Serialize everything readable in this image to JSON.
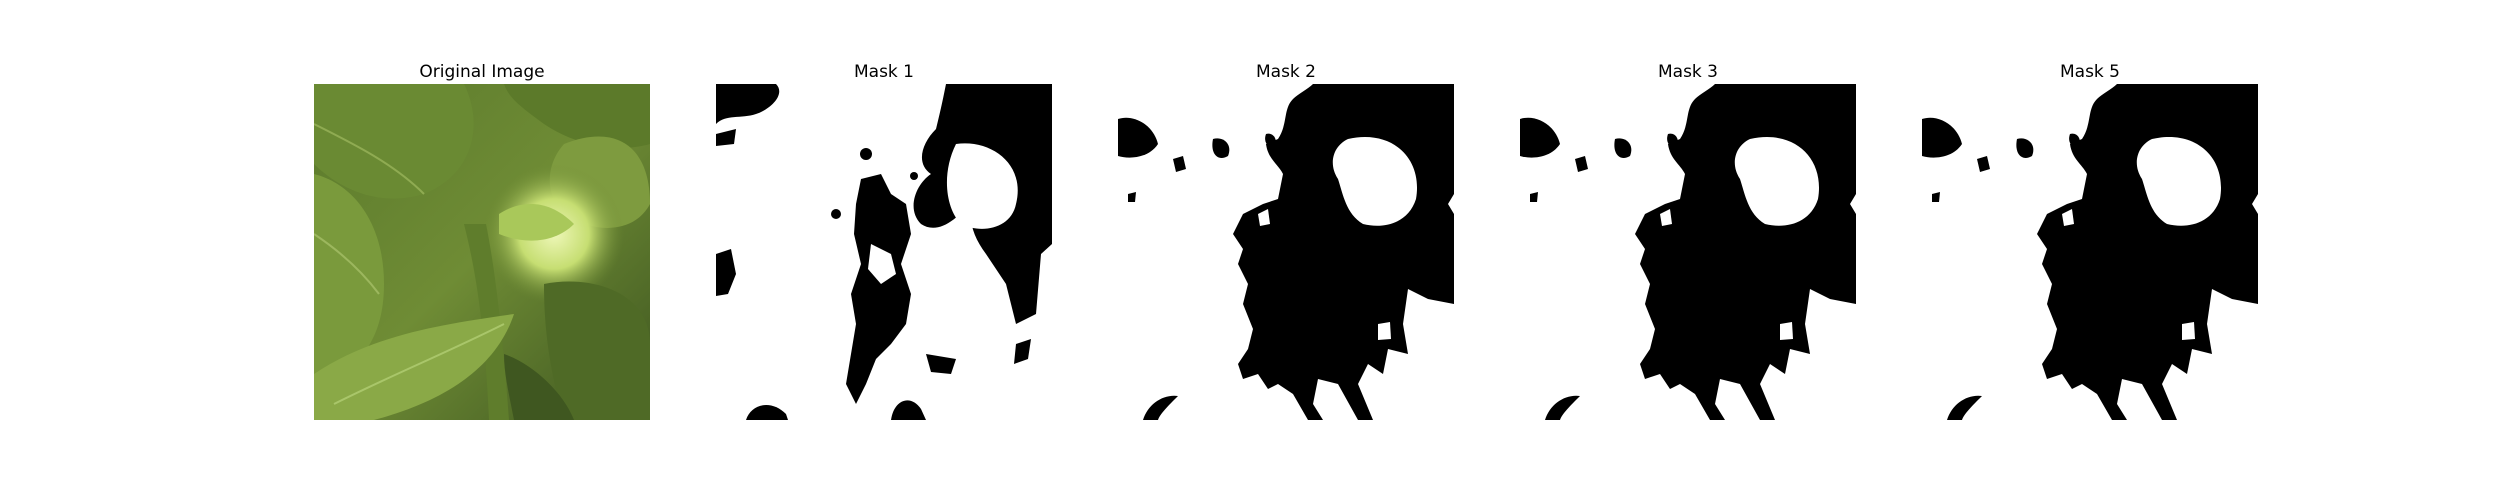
{
  "figure": {
    "panels": [
      {
        "title": "Original Image",
        "content": "leafy-green-plant-photo"
      },
      {
        "title": "Mask 1",
        "content": "binary-mask"
      },
      {
        "title": "Mask 2",
        "content": "binary-mask"
      },
      {
        "title": "Mask 3",
        "content": "binary-mask"
      },
      {
        "title": "Mask 5",
        "content": "binary-mask"
      }
    ],
    "colors": {
      "background": "#ffffff",
      "mask_foreground": "#ffffff",
      "mask_background": "#000000",
      "leaf_dark": "#4f6a26",
      "leaf_mid": "#6f8c35",
      "leaf_light": "#b9d46a",
      "highlight": "#e8f2b0"
    }
  }
}
